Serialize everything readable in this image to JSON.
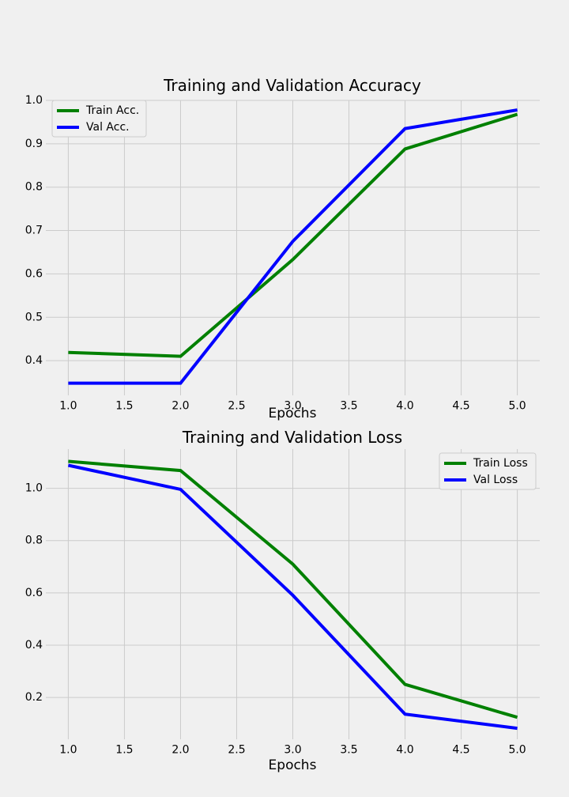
{
  "chart_data": [
    {
      "type": "line",
      "title": "Training and Validation Accuracy",
      "xlabel": "Epochs",
      "ylabel": "",
      "xlim": [
        0.8,
        5.2
      ],
      "ylim": [
        0.32,
        1.0
      ],
      "xticks": [
        1.0,
        1.5,
        2.0,
        2.5,
        3.0,
        3.5,
        4.0,
        4.5,
        5.0
      ],
      "xtick_labels": [
        "1.0",
        "1.5",
        "2.0",
        "2.5",
        "3.0",
        "3.5",
        "4.0",
        "4.5",
        "5.0"
      ],
      "yticks": [
        0.4,
        0.5,
        0.6,
        0.7,
        0.8,
        0.9,
        1.0
      ],
      "ytick_labels": [
        "0.4",
        "0.5",
        "0.6",
        "0.7",
        "0.8",
        "0.9",
        "1.0"
      ],
      "grid": true,
      "legend_position": "top-left",
      "x": [
        1,
        2,
        3,
        4,
        5
      ],
      "series": [
        {
          "name": "Train Acc.",
          "color": "#008000",
          "values": [
            0.419,
            0.41,
            0.633,
            0.888,
            0.968
          ]
        },
        {
          "name": "Val Acc.",
          "color": "#0000ff",
          "values": [
            0.348,
            0.348,
            0.675,
            0.935,
            0.978
          ]
        }
      ]
    },
    {
      "type": "line",
      "title": "Training and Validation Loss",
      "xlabel": "Epochs",
      "ylabel": "",
      "xlim": [
        0.8,
        5.2
      ],
      "ylim": [
        0.04,
        1.15
      ],
      "xticks": [
        1.0,
        1.5,
        2.0,
        2.5,
        3.0,
        3.5,
        4.0,
        4.5,
        5.0
      ],
      "xtick_labels": [
        "1.0",
        "1.5",
        "2.0",
        "2.5",
        "3.0",
        "3.5",
        "4.0",
        "4.5",
        "5.0"
      ],
      "yticks": [
        0.2,
        0.4,
        0.6,
        0.8,
        1.0
      ],
      "ytick_labels": [
        "0.2",
        "0.4",
        "0.6",
        "0.8",
        "1.0"
      ],
      "grid": true,
      "legend_position": "top-right",
      "x": [
        1,
        2,
        3,
        4,
        5
      ],
      "series": [
        {
          "name": "Train Loss",
          "color": "#008000",
          "values": [
            1.103,
            1.068,
            0.71,
            0.25,
            0.124
          ]
        },
        {
          "name": "Val Loss",
          "color": "#0000ff",
          "values": [
            1.088,
            0.996,
            0.591,
            0.136,
            0.082
          ]
        }
      ]
    }
  ]
}
